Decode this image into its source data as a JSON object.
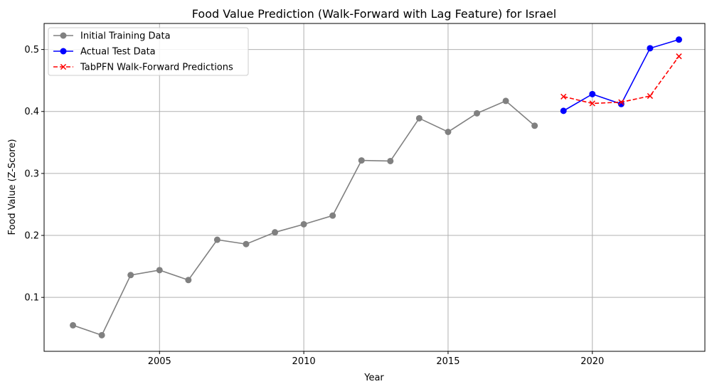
{
  "chart_data": {
    "type": "line",
    "title": "Food Value Prediction (Walk-Forward with Lag Feature) for Israel",
    "xlabel": "Year",
    "ylabel": "Food Value (Z-Score)",
    "xlim": [
      2001.0,
      2023.9
    ],
    "ylim": [
      0.013,
      0.542
    ],
    "xticks": [
      2005,
      2010,
      2015,
      2020
    ],
    "yticks": [
      0.1,
      0.2,
      0.3,
      0.4,
      0.5
    ],
    "grid": true,
    "legend_position": "top-left",
    "series": [
      {
        "name": "Initial Training Data",
        "color": "#808080",
        "line_style": "solid",
        "marker": "circle",
        "x": [
          2002,
          2003,
          2004,
          2005,
          2006,
          2007,
          2008,
          2009,
          2010,
          2011,
          2012,
          2013,
          2014,
          2015,
          2016,
          2017,
          2018
        ],
        "y": [
          0.055,
          0.039,
          0.136,
          0.144,
          0.128,
          0.193,
          0.186,
          0.205,
          0.218,
          0.232,
          0.321,
          0.32,
          0.389,
          0.367,
          0.397,
          0.417,
          0.377
        ]
      },
      {
        "name": "Actual Test Data",
        "color": "#0000ff",
        "line_style": "solid",
        "marker": "circle",
        "x": [
          2019,
          2020,
          2021,
          2022,
          2023
        ],
        "y": [
          0.401,
          0.428,
          0.412,
          0.502,
          0.516
        ]
      },
      {
        "name": "TabPFN Walk-Forward Predictions",
        "color": "#ff0000",
        "line_style": "dashed",
        "marker": "x",
        "x": [
          2019,
          2020,
          2021,
          2022,
          2023
        ],
        "y": [
          0.424,
          0.413,
          0.415,
          0.425,
          0.489
        ]
      }
    ]
  }
}
